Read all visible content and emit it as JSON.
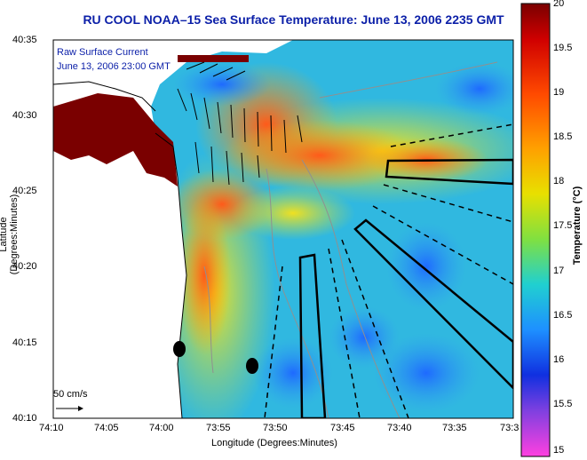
{
  "title": "RU COOL  NOAA–15  Sea Surface Temperature:  June 13, 2006 2235 GMT",
  "legend": {
    "line1": "Raw Surface Current",
    "line2": "June 13, 2006 23:00 GMT"
  },
  "scale_label": "50 cm/s",
  "axes": {
    "xlabel": "Longitude (Degrees:Minutes)",
    "ylabel": "Latitude (Degrees:Minutes)",
    "xticks": [
      "74:10",
      "74:05",
      "74:00",
      "73:55",
      "73:50",
      "73:45",
      "73:40",
      "73:35",
      "73:3"
    ],
    "yticks": [
      "40:35",
      "40:30",
      "40:25",
      "40:20",
      "40:15",
      "40:10"
    ]
  },
  "colorbar": {
    "label": "Temperature (°C)",
    "ticks": [
      "20",
      "19.5",
      "19",
      "18.5",
      "18",
      "17.5",
      "17",
      "16.5",
      "16",
      "15.5",
      "15"
    ],
    "range": [
      15,
      20
    ]
  },
  "colors": {
    "title": "#0b1fa8",
    "land": "#7a0000",
    "warm": "#e8401a",
    "cool": "#20a8e0"
  }
}
